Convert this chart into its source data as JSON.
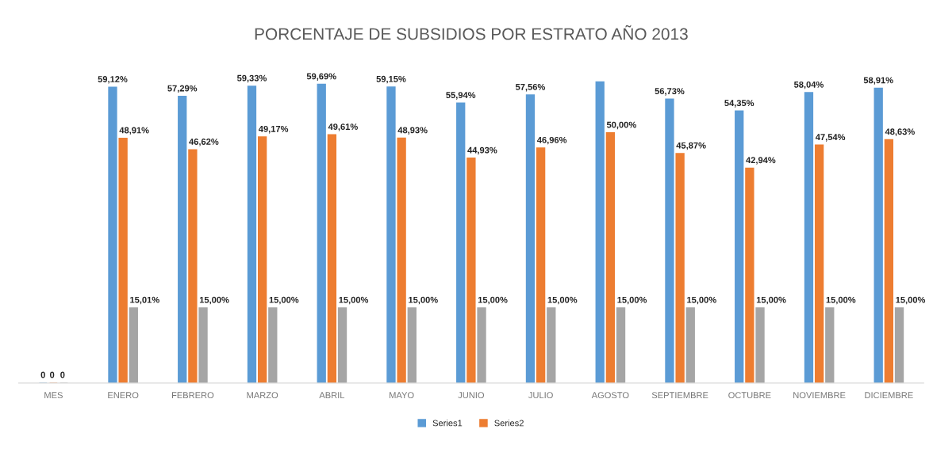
{
  "chart_data": {
    "type": "bar",
    "title": "PORCENTAJE DE SUBSIDIOS POR ESTRATO AÑO 2013",
    "categories": [
      "MES",
      "ENERO",
      "FEBRERO",
      "MARZO",
      "ABRIL",
      "MAYO",
      "JUNIO",
      "JULIO",
      "AGOSTO",
      "SEPTIEMBRE",
      "OCTUBRE",
      "NOVIEMBRE",
      "DICIEMBRE"
    ],
    "series": [
      {
        "name": "Series1",
        "color": "#5b9bd5",
        "values": [
          0,
          59.12,
          57.29,
          59.33,
          59.69,
          59.15,
          55.94,
          57.56,
          60.2,
          56.73,
          54.35,
          58.04,
          58.91
        ],
        "value_labels": [
          "0",
          "59,12%",
          "57,29%",
          "59,33%",
          "59,69%",
          "59,15%",
          "55,94%",
          "57,56%",
          null,
          "56,73%",
          "54,35%",
          "58,04%",
          "58,91%"
        ]
      },
      {
        "name": "Series2",
        "color": "#ed7d31",
        "values": [
          0,
          48.91,
          46.62,
          49.17,
          49.61,
          48.93,
          44.93,
          46.96,
          50.0,
          45.87,
          42.94,
          47.54,
          48.63
        ],
        "value_labels": [
          "0",
          "48,91%",
          "46,62%",
          "49,17%",
          "49,61%",
          "48,93%",
          "44,93%",
          "46,96%",
          "50,00%",
          "45,87%",
          "42,94%",
          "47,54%",
          "48,63%"
        ]
      },
      {
        "color": "#a5a5a5",
        "values": [
          0,
          15.01,
          15.0,
          15.0,
          15.0,
          15.0,
          15.0,
          15.0,
          15.0,
          15.0,
          15.0,
          15.0,
          15.0
        ],
        "value_labels": [
          "0",
          "15,01%",
          "15,00%",
          "15,00%",
          "15,00%",
          "15,00%",
          "15,00%",
          "15,00%",
          "15,00%",
          "15,00%",
          "15,00%",
          "15,00%",
          "15,00%"
        ]
      }
    ],
    "legend": "bottom",
    "grid": false
  }
}
